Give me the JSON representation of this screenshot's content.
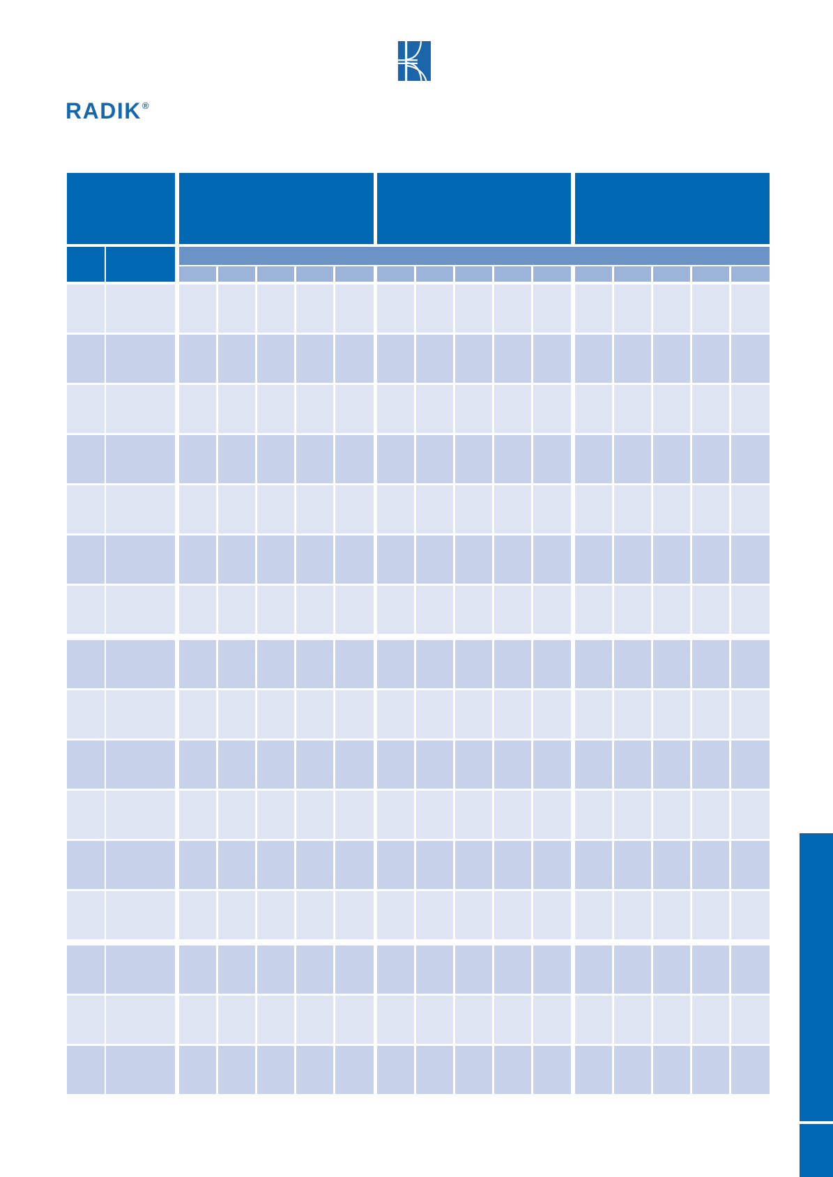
{
  "branding": {
    "product_logo": {
      "text": "RADIK",
      "registered_mark": "®",
      "color": "#1767a9"
    },
    "company_logo": {
      "icon": "korado-k-mark-icon",
      "color": "#1b65a8"
    }
  },
  "colors": {
    "header_blue": "#0068b3",
    "band_blue": "#6c93c6",
    "tick_cell_blue": "#9db4da",
    "row_light": "#dfe4f2",
    "row_dark": "#c7d1ea",
    "side_tab_blue": "#0068b3",
    "page_background": "#ffffff"
  },
  "table": {
    "header": {
      "left_title": "",
      "left_col1": "",
      "left_col2": "",
      "group_titles": [
        "",
        "",
        ""
      ],
      "tick_labels": [
        [
          "",
          "",
          "",
          "",
          ""
        ],
        [
          "",
          "",
          "",
          "",
          ""
        ],
        [
          "",
          "",
          "",
          "",
          ""
        ]
      ]
    },
    "structure": {
      "group_count": 3,
      "columns_per_group": 5,
      "left_column_count": 2,
      "data_row_count": 16,
      "thick_separator_before_rows": [
        8,
        14
      ],
      "all_cells_blank": true
    }
  }
}
